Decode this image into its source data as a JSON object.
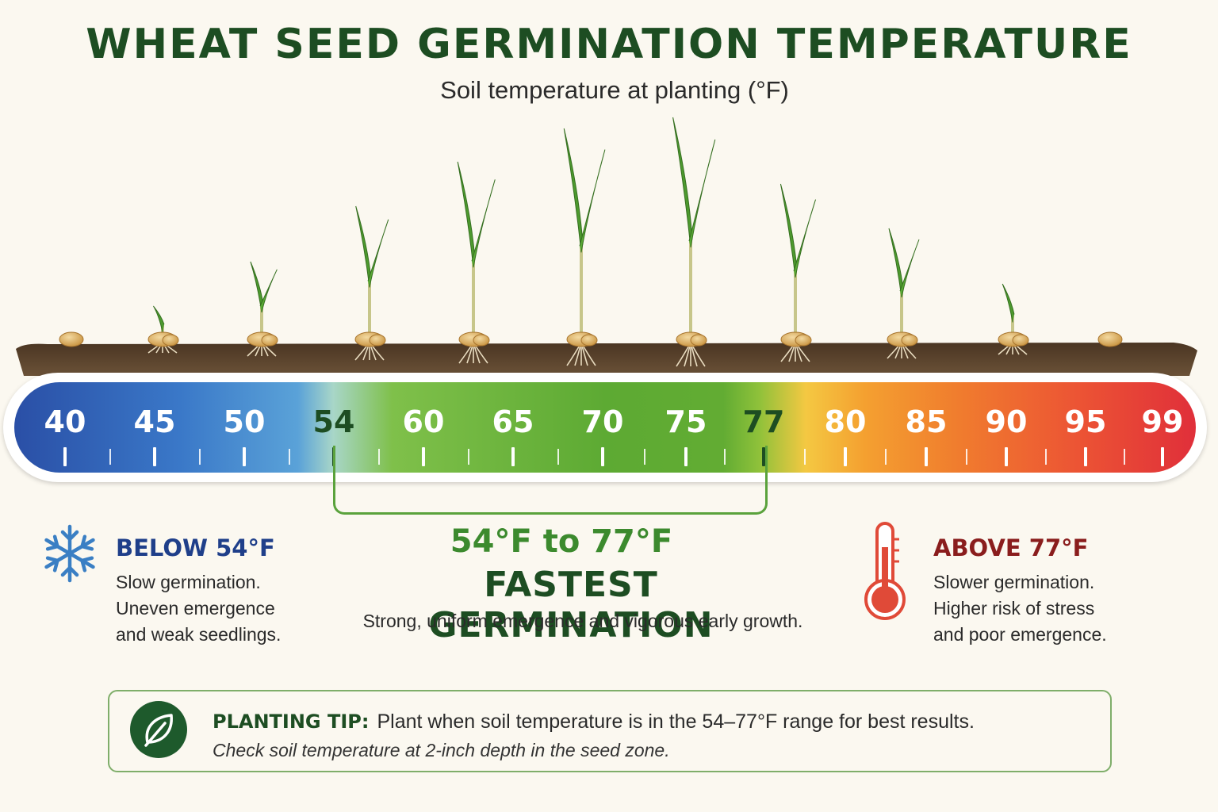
{
  "title": "WHEAT SEED GERMINATION TEMPERATURE",
  "subtitle": "Soil temperature at planting (°F)",
  "scale": {
    "labels": [
      "40",
      "45",
      "50",
      "54",
      "60",
      "65",
      "70",
      "75",
      "77",
      "80",
      "85",
      "90",
      "95",
      "99"
    ],
    "label_values": [
      40,
      45,
      50,
      54,
      60,
      65,
      70,
      75,
      77,
      80,
      85,
      90,
      95,
      99
    ],
    "highlight_labels": [
      "54",
      "77"
    ],
    "colors": {
      "cold": "#2a4fa6",
      "optimal": "#5daa33",
      "hot": "#e02f3a"
    }
  },
  "seedling_growth": [
    {
      "temp_f": 40,
      "level": 0
    },
    {
      "temp_f": 45,
      "level": 0.15
    },
    {
      "temp_f": 50,
      "level": 0.35
    },
    {
      "temp_f": 54,
      "level": 0.6
    },
    {
      "temp_f": 60,
      "level": 0.8
    },
    {
      "temp_f": 65,
      "level": 0.95
    },
    {
      "temp_f": 70,
      "level": 1.0
    },
    {
      "temp_f": 77,
      "level": 0.7
    },
    {
      "temp_f": 85,
      "level": 0.5
    },
    {
      "temp_f": 90,
      "level": 0.25
    },
    {
      "temp_f": 99,
      "level": 0
    }
  ],
  "optimal": {
    "range": "54°F to 77°F",
    "heading": "FASTEST GERMINATION",
    "description": "Strong, uniform emergence and vigorous early growth."
  },
  "below": {
    "title": "BELOW 54°F",
    "lines": [
      "Slow germination.",
      "Uneven emergence",
      "and weak seedlings."
    ],
    "icon": "snowflake-icon"
  },
  "above": {
    "title": "ABOVE 77°F",
    "lines": [
      "Slower germination.",
      "Higher risk of stress",
      "and poor emergence."
    ],
    "icon": "thermometer-icon"
  },
  "tip": {
    "heading": "PLANTING TIP:",
    "text": "Plant when soil temperature is in the 54–77°F range for best results.",
    "note": "Check soil temperature at 2-inch depth in the seed zone.",
    "icon": "leaf-icon"
  }
}
